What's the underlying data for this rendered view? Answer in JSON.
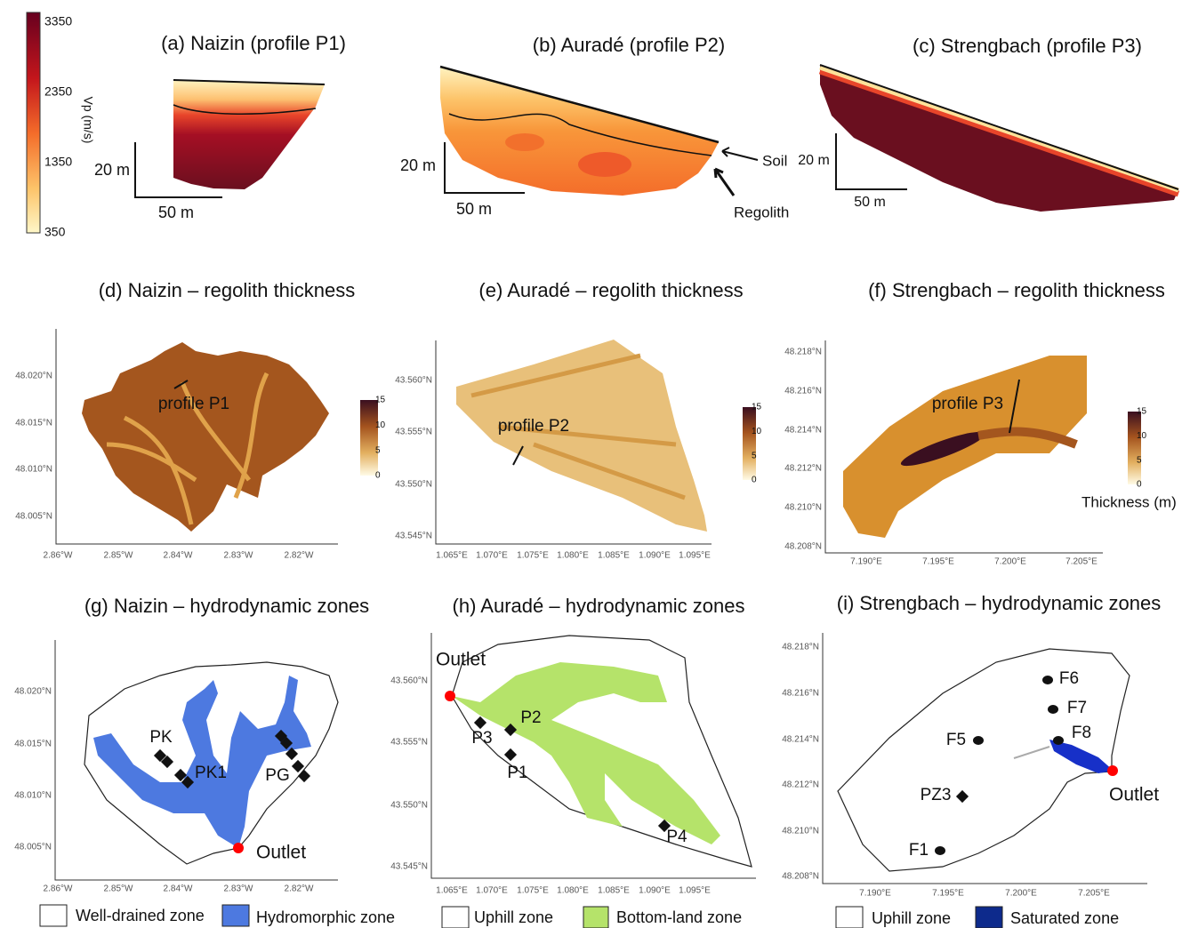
{
  "vp_colorbar": {
    "label": "Vp (m/s)",
    "ticks": [
      "3350",
      "2350",
      "1350",
      "350"
    ]
  },
  "profiles": [
    {
      "title": "(a) Naizin (profile P1)",
      "scale_vertical": "20 m",
      "scale_horizontal": "50 m"
    },
    {
      "title": "(b) Auradé (profile P2)",
      "scale_vertical": "20 m",
      "scale_horizontal": "50 m",
      "annotations": [
        "Soil",
        "Regolith"
      ]
    },
    {
      "title": "(c) Strengbach (profile P3)",
      "scale_vertical": "20 m",
      "scale_horizontal": "50 m"
    }
  ],
  "thickness_maps": [
    {
      "title": "(d)  Naizin  – regolith thickness",
      "profile_label": "profile P1",
      "yticks": [
        "48.020°N",
        "48.015°N",
        "48.010°N",
        "48.005°N"
      ],
      "xticks": [
        "2.86°W",
        "2.85°W",
        "2.84°W",
        "2.83°W",
        "2.82°W"
      ],
      "colorbar_ticks": [
        "15",
        "10",
        "5",
        "0"
      ]
    },
    {
      "title": "(e)  Auradé  – regolith thickness",
      "profile_label": "profile P2",
      "yticks": [
        "43.560°N",
        "43.555°N",
        "43.550°N",
        "43.545°N"
      ],
      "xticks": [
        "1.065°E",
        "1.070°E",
        "1.075°E",
        "1.080°E",
        "1.085°E",
        "1.090°E",
        "1.095°E"
      ],
      "colorbar_ticks": [
        "15",
        "10",
        "5",
        "0"
      ]
    },
    {
      "title": "(f)  Strengbach  – regolith thickness",
      "profile_label": "profile P3",
      "yticks": [
        "48.218°N",
        "48.216°N",
        "48.214°N",
        "48.212°N",
        "48.210°N",
        "48.208°N"
      ],
      "xticks": [
        "7.190°E",
        "7.195°E",
        "7.200°E",
        "7.205°E"
      ],
      "colorbar_ticks": [
        "15",
        "10",
        "5",
        "0"
      ]
    }
  ],
  "thickness_unit": "Thickness (m)",
  "zone_maps": [
    {
      "title": "(g) Naizin  – hydrodynamic zones",
      "yticks": [
        "48.020°N",
        "48.015°N",
        "48.010°N",
        "48.005°N"
      ],
      "xticks": [
        "2.86°W",
        "2.85°W",
        "2.84°W",
        "2.83°W",
        "2.82°W"
      ],
      "outlet": "Outlet",
      "sites": [
        "PK",
        "PK1",
        "PG"
      ],
      "legend": [
        "Well-drained zone",
        "Hydromorphic zone"
      ]
    },
    {
      "title": "(h) Auradé – hydrodynamic zones",
      "yticks": [
        "43.560°N",
        "43.555°N",
        "43.550°N",
        "43.545°N"
      ],
      "xticks": [
        "1.065°E",
        "1.070°E",
        "1.075°E",
        "1.080°E",
        "1.085°E",
        "1.090°E",
        "1.095°E"
      ],
      "outlet": "Outlet",
      "sites": [
        "P3",
        "P2",
        "P1",
        "P4"
      ],
      "legend": [
        "Uphill zone",
        "Bottom-land zone"
      ]
    },
    {
      "title": "(i) Strengbach – hydrodynamic zones",
      "yticks": [
        "48.218°N",
        "48.216°N",
        "48.214°N",
        "48.212°N",
        "48.210°N",
        "48.208°N"
      ],
      "xticks": [
        "7.190°E",
        "7.195°E",
        "7.200°E",
        "7.205°E"
      ],
      "outlet": "Outlet",
      "sites": [
        "F6",
        "F7",
        "F8",
        "F5",
        "PZ3",
        "F1"
      ],
      "legend": [
        "Uphill zone",
        "Saturated zone"
      ]
    }
  ]
}
